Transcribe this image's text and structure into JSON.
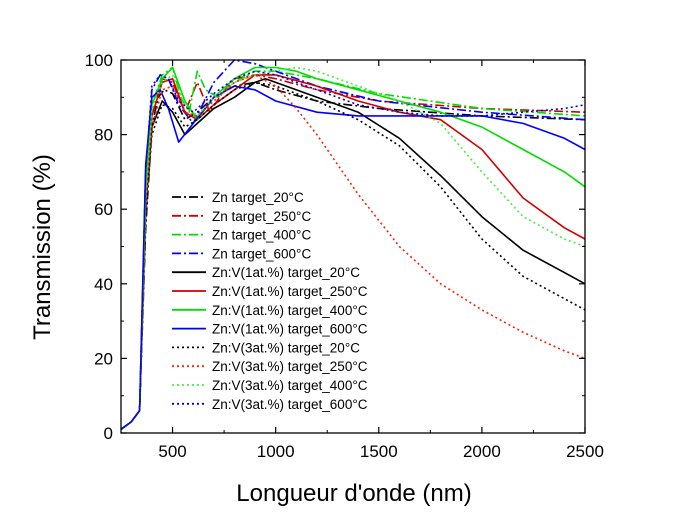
{
  "chart_data": {
    "type": "line",
    "title": "",
    "xlabel": "Longueur d'onde (nm)",
    "ylabel": "Transmission (%)",
    "xlim": [
      250,
      2500
    ],
    "ylim": [
      0,
      100
    ],
    "xticks": [
      500,
      1000,
      1500,
      2000,
      2500
    ],
    "yticks": [
      0,
      20,
      40,
      60,
      80,
      100
    ],
    "grid": false,
    "legend_position": "center-left",
    "series": [
      {
        "name": "Zn target_20°C",
        "color": "#000000",
        "dash": "dashdot",
        "x": [
          250,
          300,
          340,
          370,
          400,
          430,
          460,
          500,
          560,
          620,
          700,
          800,
          900,
          1000,
          1200,
          1500,
          2000,
          2500
        ],
        "y": [
          1,
          3,
          6,
          55,
          82,
          90,
          92,
          91,
          84,
          86,
          90,
          93,
          94,
          92,
          89,
          87,
          85,
          84
        ]
      },
      {
        "name": "Zn target_250°C",
        "color": "#d00000",
        "dash": "dashdot",
        "x": [
          250,
          300,
          340,
          370,
          400,
          450,
          500,
          560,
          620,
          680,
          740,
          800,
          900,
          1000,
          1200,
          1500,
          2000,
          2500
        ],
        "y": [
          1,
          3,
          6,
          60,
          85,
          95,
          94,
          86,
          94,
          86,
          91,
          95,
          96,
          95,
          92,
          89,
          87,
          86
        ]
      },
      {
        "name": "Zn target_400°C",
        "color": "#00dd00",
        "dash": "dashdot",
        "x": [
          250,
          300,
          340,
          370,
          400,
          450,
          500,
          540,
          580,
          620,
          660,
          720,
          800,
          900,
          1000,
          1200,
          1500,
          2000,
          2500
        ],
        "y": [
          1,
          3,
          6,
          62,
          88,
          96,
          98,
          90,
          86,
          97,
          92,
          90,
          94,
          97,
          97,
          95,
          91,
          87,
          85
        ]
      },
      {
        "name": "Zn target_600°C",
        "color": "#0000ff",
        "dash": "dashdot",
        "x": [
          250,
          300,
          340,
          370,
          400,
          440,
          480,
          530,
          600,
          700,
          800,
          900,
          1000,
          1200,
          1500,
          2000,
          2500
        ],
        "y": [
          1,
          3,
          6,
          70,
          92,
          96,
          95,
          88,
          83,
          94,
          100,
          99,
          97,
          93,
          89,
          86,
          84
        ]
      },
      {
        "name": "Zn:V(1at.%) target_20°C",
        "color": "#000000",
        "dash": "solid",
        "x": [
          250,
          300,
          340,
          370,
          400,
          450,
          500,
          560,
          620,
          700,
          800,
          900,
          950,
          1000,
          1200,
          1400,
          1600,
          1800,
          2000,
          2200,
          2400,
          2500
        ],
        "y": [
          1,
          3,
          6,
          60,
          82,
          89,
          86,
          80,
          83,
          87,
          90,
          94,
          95,
          94,
          90,
          86,
          79,
          69,
          58,
          49,
          43,
          40
        ]
      },
      {
        "name": "Zn:V(1at.%) target_250°C",
        "color": "#d00000",
        "dash": "solid",
        "x": [
          250,
          300,
          340,
          370,
          400,
          450,
          500,
          560,
          620,
          700,
          800,
          900,
          1000,
          1200,
          1400,
          1600,
          1800,
          2000,
          2200,
          2400,
          2500
        ],
        "y": [
          1,
          3,
          6,
          62,
          85,
          94,
          95,
          86,
          84,
          88,
          92,
          96,
          96,
          93,
          89,
          86,
          84,
          76,
          63,
          55,
          52
        ]
      },
      {
        "name": "Zn:V(1at.%) target_400°C",
        "color": "#00dd00",
        "dash": "solid",
        "x": [
          250,
          300,
          340,
          370,
          400,
          450,
          500,
          560,
          620,
          700,
          800,
          900,
          1000,
          1100,
          1200,
          1400,
          1600,
          1800,
          2000,
          2200,
          2400,
          2500
        ],
        "y": [
          1,
          3,
          6,
          65,
          88,
          95,
          98,
          89,
          84,
          90,
          95,
          98,
          98,
          97,
          95,
          92,
          89,
          86,
          82,
          76,
          70,
          66
        ]
      },
      {
        "name": "Zn:V(1at.%) target_600°C",
        "color": "#0000ff",
        "dash": "solid",
        "x": [
          250,
          300,
          340,
          370,
          400,
          440,
          480,
          530,
          600,
          700,
          800,
          900,
          1000,
          1200,
          1400,
          1600,
          1800,
          2000,
          2200,
          2400,
          2500
        ],
        "y": [
          1,
          3,
          6,
          72,
          90,
          92,
          87,
          78,
          83,
          90,
          93,
          92,
          89,
          86,
          85,
          85,
          85,
          85,
          83,
          79,
          76
        ]
      },
      {
        "name": "Zn:V(3at.%) target_20°C",
        "color": "#000000",
        "dash": "dot",
        "x": [
          250,
          300,
          340,
          370,
          400,
          450,
          500,
          560,
          620,
          700,
          800,
          900,
          1000,
          1200,
          1400,
          1600,
          1800,
          2000,
          2200,
          2400,
          2500
        ],
        "y": [
          1,
          3,
          6,
          58,
          80,
          88,
          87,
          82,
          84,
          88,
          92,
          94,
          93,
          89,
          84,
          77,
          66,
          52,
          42,
          36,
          33
        ]
      },
      {
        "name": "Zn:V(3at.%) target_250°C",
        "color": "#ff2000",
        "dash": "dot",
        "x": [
          250,
          300,
          340,
          370,
          400,
          450,
          500,
          560,
          620,
          700,
          800,
          900,
          1000,
          1100,
          1200,
          1300,
          1400,
          1500,
          1600,
          1800,
          2000,
          2200,
          2400,
          2500
        ],
        "y": [
          1,
          3,
          6,
          60,
          82,
          92,
          93,
          86,
          85,
          89,
          94,
          96,
          93,
          87,
          80,
          72,
          64,
          57,
          50,
          40,
          33,
          27,
          22,
          20
        ]
      },
      {
        "name": "Zn:V(3at.%) target_400°C",
        "color": "#44ee44",
        "dash": "dot",
        "x": [
          250,
          300,
          340,
          370,
          400,
          450,
          500,
          560,
          620,
          700,
          800,
          900,
          1000,
          1100,
          1200,
          1400,
          1600,
          1800,
          2000,
          2200,
          2400,
          2500
        ],
        "y": [
          1,
          3,
          6,
          63,
          87,
          94,
          96,
          88,
          85,
          90,
          94,
          96,
          97,
          98,
          97,
          93,
          89,
          83,
          70,
          58,
          52,
          50
        ]
      },
      {
        "name": "Zn:V(3at.%) target_600°C",
        "color": "#0000cc",
        "dash": "dot",
        "x": [
          250,
          300,
          340,
          370,
          400,
          440,
          480,
          530,
          600,
          700,
          800,
          900,
          1000,
          1200,
          1400,
          1600,
          1800,
          2000,
          2200,
          2400,
          2500
        ],
        "y": [
          1,
          3,
          6,
          70,
          93,
          96,
          95,
          89,
          86,
          91,
          95,
          97,
          96,
          92,
          88,
          86,
          85,
          85,
          86,
          87,
          88
        ]
      }
    ]
  }
}
